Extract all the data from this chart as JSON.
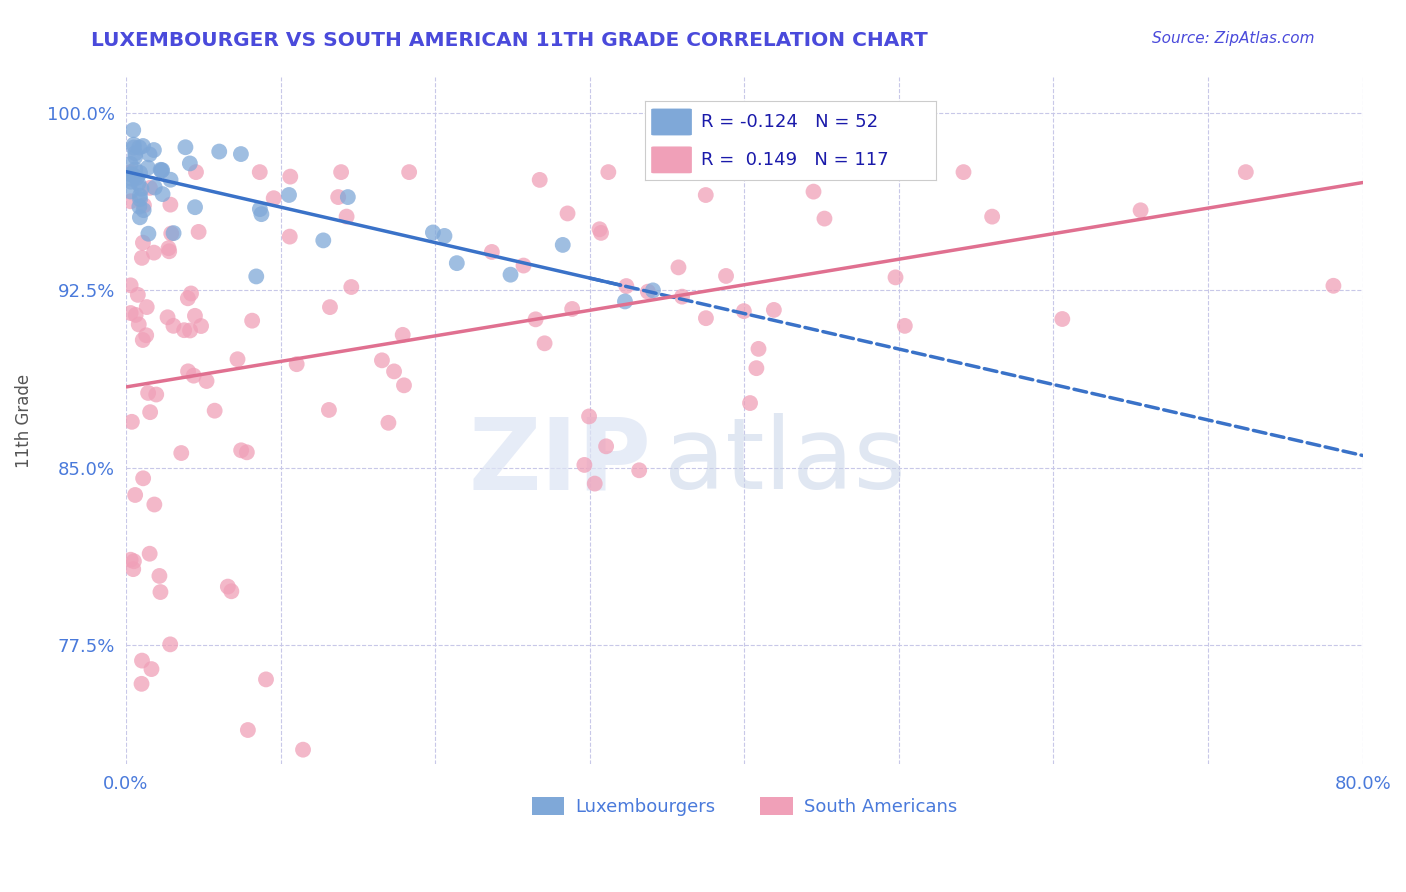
{
  "title": "LUXEMBOURGER VS SOUTH AMERICAN 11TH GRADE CORRELATION CHART",
  "source": "Source: ZipAtlas.com",
  "xlabel_label": "Luxembourgers",
  "sa_label": "South Americans",
  "y_axis_label": "11th Grade",
  "x_min": 0.0,
  "x_max": 0.8,
  "y_min": 0.725,
  "y_max": 1.015,
  "y_tick_vals": [
    0.775,
    0.85,
    0.925,
    1.0
  ],
  "y_tick_labels": [
    "77.5%",
    "85.0%",
    "92.5%",
    "100.0%"
  ],
  "title_color": "#4a4adb",
  "source_color": "#4a4adb",
  "tick_color": "#4a7adb",
  "grid_color": "#c8c8e8",
  "legend_R_lux": "-0.124",
  "legend_N_lux": "52",
  "legend_R_sa": "0.149",
  "legend_N_sa": "117",
  "lux_color": "#7fa8d8",
  "sa_color": "#f0a0b8",
  "lux_line_color": "#3a72c8",
  "sa_line_color": "#e07090"
}
